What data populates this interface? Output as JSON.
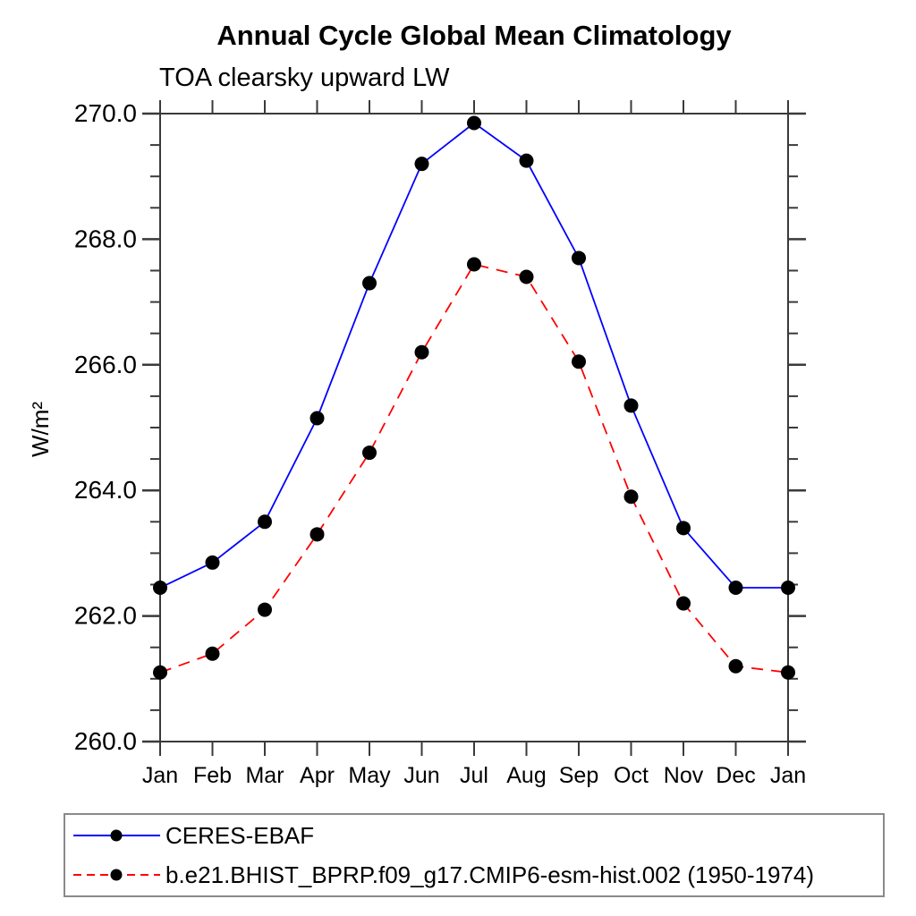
{
  "page": {
    "background": "#ffffff"
  },
  "chart_data": {
    "type": "line",
    "title": "Annual Cycle Global Mean Climatology",
    "subtitle": "TOA clearsky upward LW",
    "ylabel": "W/m²",
    "xlabel": "",
    "x_categories": [
      "Jan",
      "Feb",
      "Mar",
      "Apr",
      "May",
      "Jun",
      "Jul",
      "Aug",
      "Sep",
      "Oct",
      "Nov",
      "Dec",
      "Jan"
    ],
    "ylim": [
      260.0,
      270.0
    ],
    "y_major_ticks": [
      260.0,
      262.0,
      264.0,
      266.0,
      268.0,
      270.0
    ],
    "y_tick_labels": [
      "260.0",
      "262.0",
      "264.0",
      "266.0",
      "268.0",
      "270.0"
    ],
    "y_minor_step": 0.5,
    "grid": false,
    "legend_position": "bottom-left-box",
    "axis_color": "#3a3a3a",
    "text_color": "#000000",
    "marker": "filled-circle",
    "series": [
      {
        "name": "CERES-EBAF",
        "color": "#0000ff",
        "style": "solid",
        "marker_color": "#000000",
        "values": [
          262.45,
          262.85,
          263.5,
          265.15,
          267.3,
          269.2,
          269.85,
          269.25,
          267.7,
          265.35,
          263.4,
          262.45,
          262.45
        ]
      },
      {
        "name": "b.e21.BHIST_BPRP.f09_g17.CMIP6-esm-hist.002 (1950-1974)",
        "color": "#ff0000",
        "style": "dashed",
        "marker_color": "#000000",
        "values": [
          261.1,
          261.4,
          262.1,
          263.3,
          264.6,
          266.2,
          267.6,
          267.4,
          266.05,
          263.9,
          262.2,
          261.2,
          261.1
        ]
      }
    ]
  }
}
